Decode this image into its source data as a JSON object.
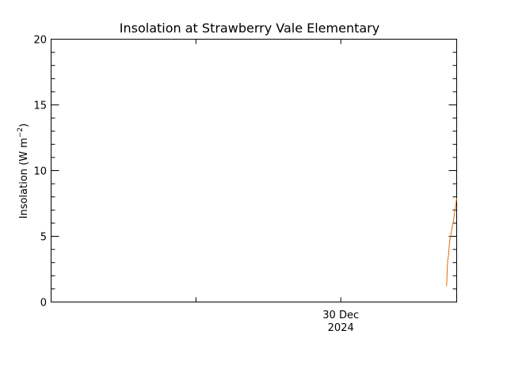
{
  "chart_data": {
    "type": "line",
    "title": "Insolation at Strawberry Vale Elementary",
    "ylabel_main": "Insolation (W m",
    "ylabel_sup": "−2",
    "ylabel_close": ")",
    "ylim": [
      0,
      20
    ],
    "y_ticks": [
      {
        "value": 0,
        "label": "0"
      },
      {
        "value": 5,
        "label": "5"
      },
      {
        "value": 10,
        "label": "10"
      },
      {
        "value": 15,
        "label": "15"
      },
      {
        "value": 20,
        "label": "20"
      }
    ],
    "y_minor_step": 1,
    "x_range_days": [
      -0.5,
      0.9
    ],
    "x_major_ticks": [
      0,
      0.5
    ],
    "x_tick_label_day": "30 Dec",
    "x_tick_label_year": "2024",
    "x_tick_label_at": 0.5,
    "grid": false,
    "legend": "none",
    "series": [
      {
        "color": "#e07000",
        "x": [
          0.865,
          0.866,
          0.867,
          0.868,
          0.869,
          0.871,
          0.872,
          0.874,
          0.876,
          0.878,
          0.88,
          0.882,
          0.884,
          0.886,
          0.888,
          0.89,
          0.892,
          0.894,
          0.896,
          0.898,
          0.9
        ],
        "y": [
          1.2,
          1.6,
          2.3,
          2.8,
          3.2,
          3.4,
          3.6,
          4.2,
          4.7,
          4.9,
          5.1,
          5.4,
          5.6,
          5.9,
          6.1,
          6.4,
          6.7,
          7.0,
          7.3,
          7.6,
          7.9
        ]
      }
    ]
  }
}
